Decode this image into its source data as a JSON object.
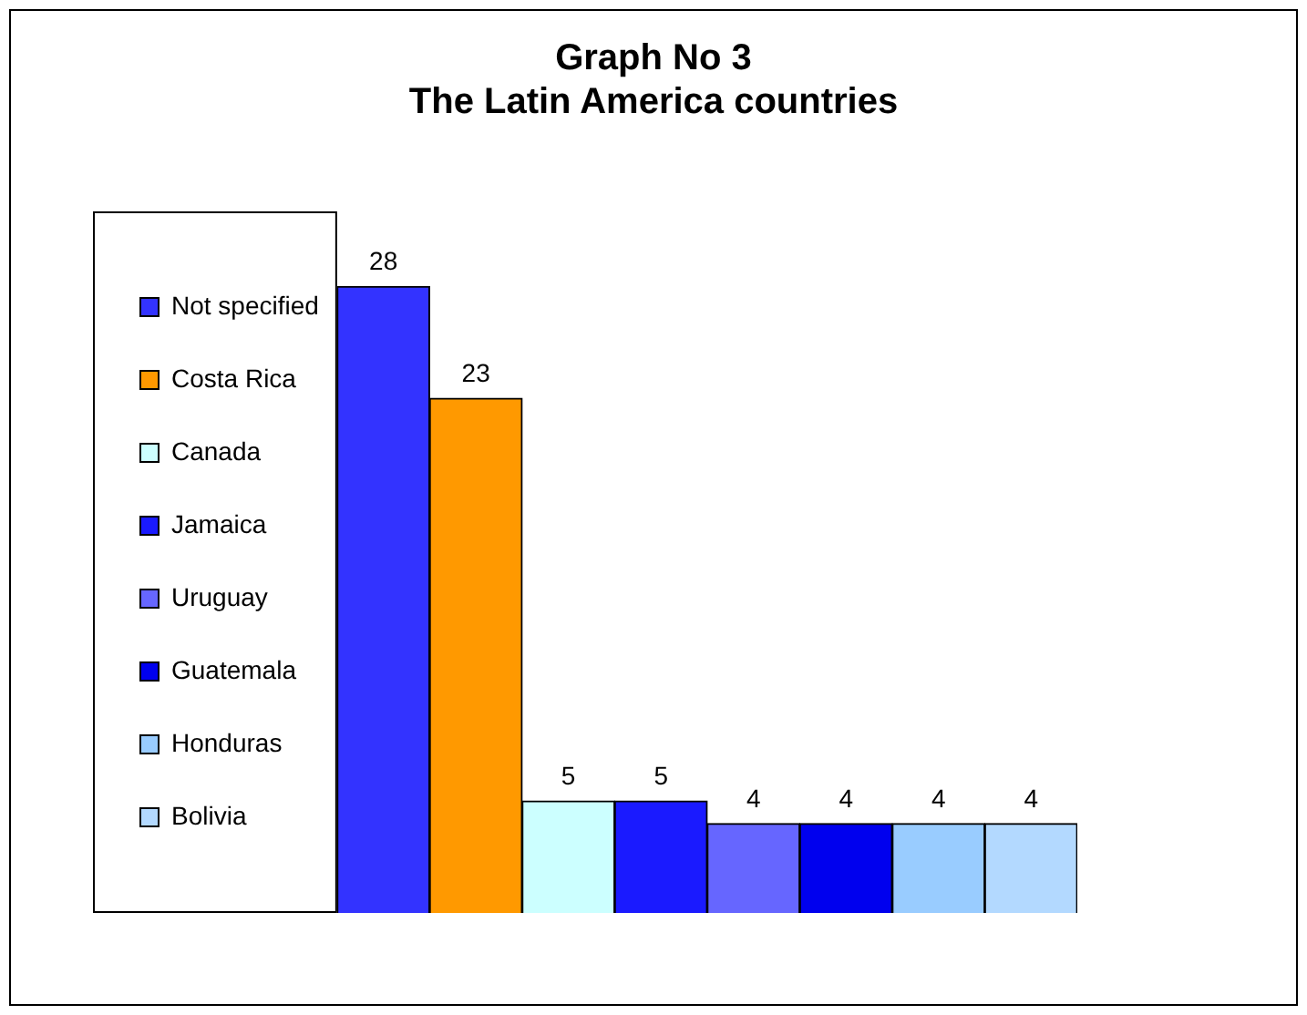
{
  "chart_data": {
    "type": "bar",
    "title": [
      "Graph No 3",
      "The Latin America countries"
    ],
    "categories": [
      null
    ],
    "series": [
      {
        "name": "Not specified",
        "color": "#3333ff",
        "values": [
          28
        ]
      },
      {
        "name": "Costa Rica",
        "color": "#ff9900",
        "values": [
          23
        ]
      },
      {
        "name": "Canada",
        "color": "#ccffff",
        "values": [
          5
        ]
      },
      {
        "name": "Jamaica",
        "color": "#1a1aff",
        "values": [
          5
        ]
      },
      {
        "name": "Uruguay",
        "color": "#6666ff",
        "values": [
          4
        ]
      },
      {
        "name": "Guatemala",
        "color": "#0000ee",
        "values": [
          4
        ]
      },
      {
        "name": "Honduras",
        "color": "#99ccff",
        "values": [
          4
        ]
      },
      {
        "name": "Bolivia",
        "color": "#b3d9ff",
        "values": [
          4
        ]
      }
    ],
    "data_labels": true,
    "legend": "left"
  }
}
